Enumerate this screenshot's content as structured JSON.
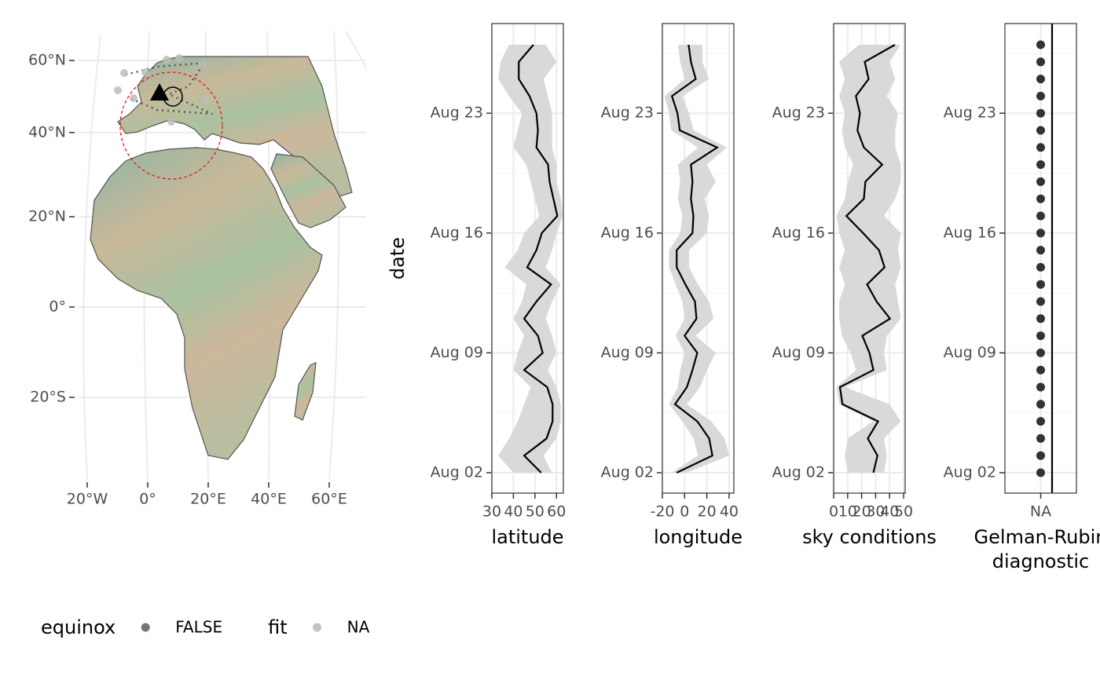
{
  "chart_data": [
    {
      "type": "map",
      "xticks": [
        {
          "value": -20,
          "label": "20°W"
        },
        {
          "value": 0,
          "label": "0°"
        },
        {
          "value": 20,
          "label": "20°E"
        },
        {
          "value": 40,
          "label": "40°E"
        },
        {
          "value": 60,
          "label": "60°E"
        }
      ],
      "yticks": [
        {
          "value": -20,
          "label": "20°S"
        },
        {
          "value": 0,
          "label": "0°"
        },
        {
          "value": 20,
          "label": "20°N"
        },
        {
          "value": 40,
          "label": "40°N"
        },
        {
          "value": 60,
          "label": "60°N"
        }
      ]
    },
    {
      "type": "ribbon_line",
      "y_label": "date",
      "x_label": "latitude",
      "categories": [
        "Aug 02",
        null,
        null,
        null,
        null,
        null,
        null,
        "Aug 09",
        null,
        null,
        null,
        null,
        null,
        null,
        "Aug 16",
        null,
        null,
        null,
        null,
        null,
        null,
        "Aug 23",
        null,
        null,
        null,
        null
      ],
      "values": [
        52.9,
        45,
        55.4,
        58.2,
        58.2,
        55.7,
        45,
        53.6,
        51.4,
        45,
        50.7,
        57.5,
        46.4,
        50.7,
        53.2,
        60.4,
        58.6,
        56.8,
        56.1,
        50.7,
        51.4,
        50.7,
        47.5,
        42.5,
        42.5,
        49.3
      ],
      "lower": [
        40,
        33,
        38,
        42,
        45,
        48,
        40,
        42,
        45,
        40,
        44,
        46,
        36,
        42,
        45,
        52,
        50,
        48,
        46,
        40,
        42,
        44,
        38,
        33,
        34,
        38
      ],
      "upper": [
        58,
        54,
        60,
        62,
        62,
        60,
        56,
        60,
        58,
        55,
        58,
        62,
        55,
        58,
        60,
        63,
        62,
        60,
        60,
        58,
        58,
        58,
        56,
        54,
        60,
        55
      ],
      "color": "#000000",
      "ribbon_color": "#d9d9d9",
      "xlim": [
        30,
        63.2
      ],
      "xticks": [
        30,
        40,
        50,
        60
      ]
    },
    {
      "type": "ribbon_line",
      "x_label": "longitude",
      "categories": [
        "Aug 02",
        null,
        null,
        null,
        null,
        null,
        null,
        "Aug 09",
        null,
        null,
        null,
        null,
        null,
        null,
        "Aug 16",
        null,
        null,
        null,
        null,
        null,
        null,
        "Aug 23",
        null,
        null,
        null,
        null
      ],
      "values": [
        -7.1,
        25,
        22.1,
        11.4,
        -8.6,
        2.1,
        7.1,
        11.4,
        0,
        10.7,
        9.3,
        0.7,
        -7.1,
        -7.1,
        7.1,
        7.9,
        5.7,
        7.1,
        5.7,
        29.3,
        -4.3,
        -6.4,
        -11.4,
        10,
        5.7,
        3.6
      ],
      "lower": [
        -12,
        12,
        8,
        -2,
        -14,
        -6,
        -4,
        0,
        -8,
        0,
        -2,
        -8,
        -14,
        -14,
        -4,
        -2,
        -6,
        -4,
        -6,
        12,
        -12,
        -14,
        -18,
        0,
        -4,
        -6
      ],
      "upper": [
        2,
        40,
        36,
        24,
        2,
        14,
        20,
        28,
        10,
        26,
        22,
        12,
        4,
        4,
        20,
        22,
        18,
        28,
        20,
        38,
        8,
        4,
        -2,
        22,
        16,
        16
      ],
      "color": "#000000",
      "ribbon_color": "#d9d9d9",
      "xlim": [
        -20,
        44.3
      ],
      "xticks": [
        -20,
        0,
        20,
        40
      ]
    },
    {
      "type": "ribbon_line",
      "x_label": "sky conditions",
      "categories": [
        "Aug 02",
        null,
        null,
        null,
        null,
        null,
        null,
        "Aug 09",
        null,
        null,
        null,
        null,
        null,
        null,
        "Aug 16",
        null,
        null,
        null,
        null,
        null,
        null,
        "Aug 23",
        null,
        null,
        null,
        null
      ],
      "values": [
        28.4,
        31.3,
        24.4,
        31.8,
        6.3,
        4.5,
        28.4,
        25.6,
        20.5,
        40.3,
        30.7,
        23.9,
        36.4,
        32.4,
        21,
        9.1,
        21.6,
        22.7,
        34.7,
        21.6,
        17,
        18.8,
        15.9,
        25,
        22.2,
        43.8
      ],
      "lower": [
        10,
        8,
        10,
        28,
        4,
        2,
        16,
        12,
        6,
        4,
        4,
        8,
        4,
        8,
        4,
        2,
        8,
        10,
        14,
        8,
        6,
        8,
        4,
        8,
        4,
        18
      ],
      "upper": [
        36,
        38,
        36,
        48,
        40,
        8,
        38,
        36,
        38,
        48,
        46,
        44,
        48,
        46,
        48,
        36,
        44,
        48,
        48,
        44,
        44,
        46,
        38,
        44,
        40,
        48
      ],
      "color": "#000000",
      "ribbon_color": "#d9d9d9",
      "xlim": [
        0,
        51.1
      ],
      "xticks": [
        0,
        10,
        20,
        30,
        40,
        50
      ]
    },
    {
      "type": "dot",
      "x_label": [
        "Gelman-Rubin",
        "diagnostic"
      ],
      "categories": [
        "Aug 02",
        null,
        null,
        null,
        null,
        null,
        null,
        "Aug 09",
        null,
        null,
        null,
        null,
        null,
        null,
        "Aug 16",
        null,
        null,
        null,
        null,
        null,
        null,
        "Aug 23",
        null,
        null,
        null,
        null
      ],
      "x_categories": [
        "NA"
      ],
      "values": [
        "NA",
        "NA",
        "NA",
        "NA",
        "NA",
        "NA",
        "NA",
        "NA",
        "NA",
        "NA",
        "NA",
        "NA",
        "NA",
        "NA",
        "NA",
        "NA",
        "NA",
        "NA",
        "NA",
        "NA",
        "NA",
        "NA",
        "NA",
        "NA",
        "NA",
        "NA"
      ],
      "color": "#333333"
    }
  ],
  "legend": [
    {
      "title": "equinox",
      "labels": [
        "FALSE"
      ],
      "color": "#666666"
    },
    {
      "title": "fit",
      "labels": [
        "NA"
      ],
      "color": "#bdbdbd"
    }
  ]
}
